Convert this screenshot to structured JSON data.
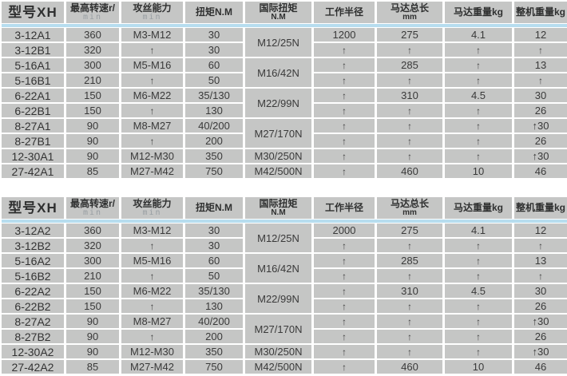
{
  "page": {
    "background": "#ffffff",
    "colors": {
      "cell_bg": "#c5c6c5",
      "separator": "#ffffff",
      "header_accent_line": "#b7ddef",
      "text": "#3a3a3a",
      "light_unit_text": "#989ea2"
    },
    "ditto_mark": "↑"
  },
  "tables": [
    {
      "name": "spec-table-series-1",
      "headers": [
        {
          "key": "model",
          "l1": "型号XH"
        },
        {
          "key": "max-speed",
          "l1": "最高转速r/",
          "l2": "min",
          "l2_style": "light"
        },
        {
          "key": "tap-capacity",
          "l1": "攻丝能力",
          "l2": "min",
          "l2_style": "light"
        },
        {
          "key": "torque",
          "l1": "扭矩N.M"
        },
        {
          "key": "int-torque",
          "l1": "国际扭矩",
          "l2": "N.M"
        },
        {
          "key": "work-radius",
          "l1": "工作半径"
        },
        {
          "key": "motor-length",
          "l1": "马达总长",
          "l2": "mm"
        },
        {
          "key": "motor-weight",
          "l1": "马达重量kg"
        },
        {
          "key": "total-weight",
          "l1": "整机重量kg"
        }
      ],
      "rows": [
        [
          "3-12A1",
          "360",
          "M3-M12",
          "30",
          "1200",
          "275",
          "4.1",
          "12"
        ],
        [
          "3-12B1",
          "320",
          "↑",
          "30",
          "↑",
          "↑",
          "↑",
          "↑"
        ],
        [
          "5-16A1",
          "300",
          "M5-M16",
          "60",
          "↑",
          "285",
          "↑",
          "13"
        ],
        [
          "5-16B1",
          "210",
          "↑",
          "50",
          "↑",
          "↑",
          "↑",
          "↑"
        ],
        [
          "6-22A1",
          "150",
          "M6-M22",
          "35/130",
          "↑",
          "310",
          "4.5",
          "30"
        ],
        [
          "6-22B1",
          "150",
          "↑",
          "130",
          "↑",
          "↑",
          "↑",
          "26"
        ],
        [
          "8-27A1",
          "90",
          "M8-M27",
          "40/200",
          "↑",
          "↑",
          "↑",
          "↑30"
        ],
        [
          "8-27B1",
          "90",
          "↑",
          "200",
          "↑",
          "↑",
          "↑",
          "26"
        ],
        [
          "12-30A1",
          "90",
          "M12-M30",
          "350",
          "↑",
          "↑",
          "↑",
          "↑30"
        ],
        [
          "27-42A1",
          "85",
          "M27-M42",
          "750",
          "↑",
          "460",
          "10",
          "46"
        ]
      ],
      "int_torque_cells": [
        {
          "text": "M12/25N",
          "row": 1,
          "span": 2
        },
        {
          "text": "M16/42N",
          "row": 3,
          "span": 2
        },
        {
          "text": "M22/99N",
          "row": 5,
          "span": 2
        },
        {
          "text": "M27/170N",
          "row": 7,
          "span": 2
        },
        {
          "text": "M30/250N",
          "row": 9,
          "span": 1
        },
        {
          "text": "M42/500N",
          "row": 10,
          "span": 1
        }
      ]
    },
    {
      "name": "spec-table-series-2",
      "headers": [
        {
          "key": "model",
          "l1": "型号XH"
        },
        {
          "key": "max-speed",
          "l1": "最高转速r/",
          "l2": "min",
          "l2_style": "light"
        },
        {
          "key": "tap-capacity",
          "l1": "攻丝能力",
          "l2": "min",
          "l2_style": "light"
        },
        {
          "key": "torque",
          "l1": "扭矩N.M"
        },
        {
          "key": "int-torque",
          "l1": "国际扭矩",
          "l2": "N.M"
        },
        {
          "key": "work-radius",
          "l1": "工作半径"
        },
        {
          "key": "motor-length",
          "l1": "马达总长",
          "l2": "mm"
        },
        {
          "key": "motor-weight",
          "l1": "马达重量kg"
        },
        {
          "key": "total-weight",
          "l1": "整机重量kg"
        }
      ],
      "rows": [
        [
          "3-12A2",
          "360",
          "M3-M12",
          "30",
          "2000",
          "275",
          "4.1",
          "12"
        ],
        [
          "3-12B2",
          "320",
          "↑",
          "30",
          "↑",
          "↑",
          "↑",
          "↑"
        ],
        [
          "5-16A2",
          "300",
          "M5-M16",
          "60",
          "↑",
          "285",
          "↑",
          "13"
        ],
        [
          "5-16B2",
          "210",
          "↑",
          "50",
          "↑",
          "↑",
          "↑",
          "↑"
        ],
        [
          "6-22A2",
          "150",
          "M6-M22",
          "35/130",
          "↑",
          "310",
          "4.5",
          "30"
        ],
        [
          "6-22B2",
          "150",
          "↑",
          "130",
          "↑",
          "↑",
          "↑",
          "26"
        ],
        [
          "8-27A2",
          "90",
          "M8-M27",
          "40/200",
          "↑",
          "↑",
          "↑",
          "↑30"
        ],
        [
          "8-27B2",
          "90",
          "↑",
          "200",
          "↑",
          "↑",
          "↑",
          "26"
        ],
        [
          "12-30A2",
          "90",
          "M12-M30",
          "350",
          "↑",
          "↑",
          "↑",
          "↑30"
        ],
        [
          "27-42A2",
          "85",
          "M27-M42",
          "750",
          "↑",
          "460",
          "10",
          "46"
        ]
      ],
      "int_torque_cells": [
        {
          "text": "M12/25N",
          "row": 1,
          "span": 2
        },
        {
          "text": "M16/42N",
          "row": 3,
          "span": 2
        },
        {
          "text": "M22/99N",
          "row": 5,
          "span": 2
        },
        {
          "text": "M27/170N",
          "row": 7,
          "span": 2
        },
        {
          "text": "M30/250N",
          "row": 9,
          "span": 1
        },
        {
          "text": "M42/500N",
          "row": 10,
          "span": 1
        }
      ]
    }
  ]
}
